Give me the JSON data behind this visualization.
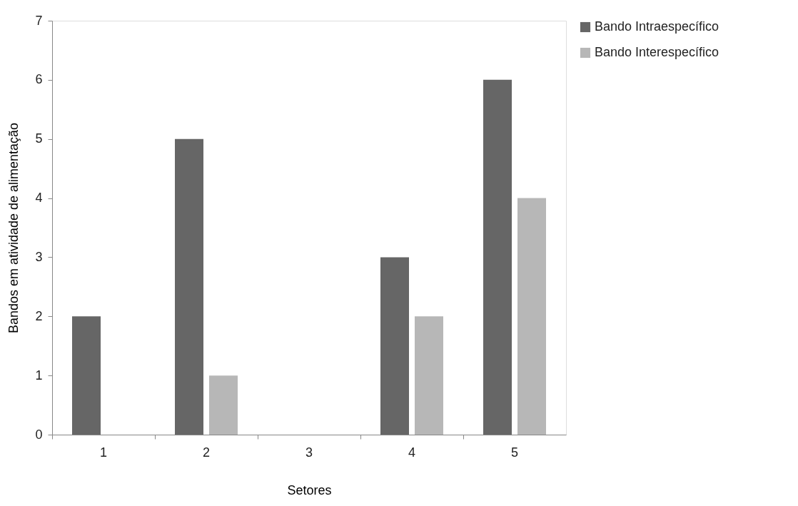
{
  "chart_data": {
    "type": "bar",
    "xlabel": "Setores",
    "ylabel": "Bandos em  atividade de alimentação",
    "categories": [
      "1",
      "2",
      "3",
      "4",
      "5"
    ],
    "series": [
      {
        "name": "Bando Intraespecífico",
        "color": "#666666",
        "values": [
          2,
          5,
          0,
          3,
          6
        ]
      },
      {
        "name": "Bando Interespecífico",
        "color": "#b7b7b7",
        "values": [
          0,
          1,
          0,
          2,
          4
        ]
      }
    ],
    "ylim": [
      0,
      7
    ],
    "yticks": [
      0,
      1,
      2,
      3,
      4,
      5,
      6,
      7
    ],
    "grid": false,
    "legend": "right"
  }
}
